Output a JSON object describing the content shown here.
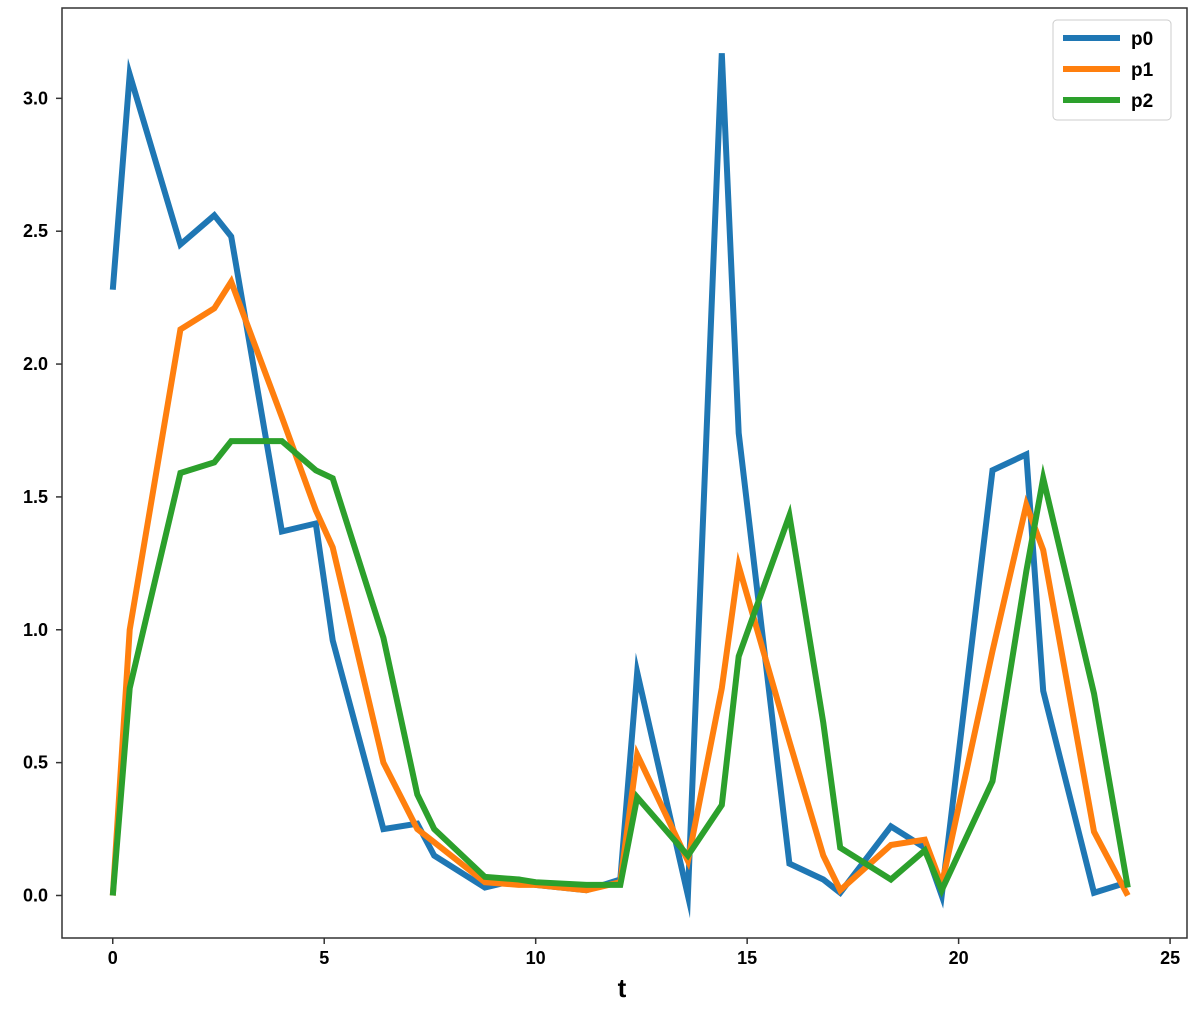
{
  "chart_data": {
    "type": "line",
    "title": "",
    "xlabel": "t",
    "ylabel": "",
    "xlim": [
      -1.2,
      25.4
    ],
    "ylim": [
      -0.16,
      3.34
    ],
    "xticks": [
      0,
      5,
      10,
      15,
      20,
      25
    ],
    "yticks": [
      0.0,
      0.5,
      1.0,
      1.5,
      2.0,
      2.5,
      3.0
    ],
    "xtick_labels": [
      "0",
      "5",
      "10",
      "15",
      "20",
      "25"
    ],
    "ytick_labels": [
      "0.0",
      "0.5",
      "1.0",
      "1.5",
      "2.0",
      "2.5",
      "3.0"
    ],
    "grid": false,
    "legend_position": "top-right",
    "series": [
      {
        "name": "p0",
        "color": "#1f77b4",
        "x": [
          0,
          0.4,
          1.6,
          2.4,
          2.8,
          4.0,
          4.8,
          5.2,
          6.4,
          7.2,
          7.6,
          8.8,
          9.6,
          10.0,
          11.2,
          12.0,
          12.4,
          13.6,
          14.4,
          14.8,
          16.0,
          16.8,
          17.2,
          18.4,
          19.2,
          19.6,
          20.8,
          21.6,
          22.0,
          23.2,
          24.0
        ],
        "y": [
          2.28,
          3.09,
          2.45,
          2.56,
          2.48,
          1.37,
          1.4,
          0.96,
          0.25,
          0.27,
          0.15,
          0.03,
          0.06,
          0.04,
          0.02,
          0.06,
          0.84,
          0.0,
          3.17,
          1.74,
          0.12,
          0.06,
          0.01,
          0.26,
          0.18,
          0.0,
          1.6,
          1.66,
          0.77,
          0.01,
          0.05
        ]
      },
      {
        "name": "p1",
        "color": "#ff7f0e",
        "x": [
          0,
          0.4,
          1.6,
          2.4,
          2.8,
          4.0,
          4.8,
          5.2,
          6.4,
          7.2,
          7.6,
          8.8,
          9.6,
          10.0,
          11.2,
          12.0,
          12.4,
          13.6,
          14.4,
          14.8,
          16.0,
          16.8,
          17.2,
          18.4,
          19.2,
          19.6,
          20.8,
          21.6,
          22.0,
          23.2,
          24.0
        ],
        "y": [
          0.0,
          1.0,
          2.13,
          2.21,
          2.31,
          1.8,
          1.45,
          1.31,
          0.5,
          0.25,
          0.2,
          0.05,
          0.04,
          0.04,
          0.02,
          0.05,
          0.53,
          0.13,
          0.78,
          1.24,
          0.58,
          0.15,
          0.02,
          0.19,
          0.21,
          0.04,
          0.92,
          1.47,
          1.3,
          0.24,
          0.0
        ]
      },
      {
        "name": "p2",
        "color": "#2ca02c",
        "x": [
          0,
          0.4,
          1.6,
          2.4,
          2.8,
          4.0,
          4.8,
          5.2,
          6.4,
          7.2,
          7.6,
          8.8,
          9.6,
          10.0,
          11.2,
          12.0,
          12.4,
          13.6,
          14.4,
          14.8,
          16.0,
          16.8,
          17.2,
          18.4,
          19.2,
          19.6,
          20.8,
          21.6,
          22.0,
          23.2,
          24.0
        ],
        "y": [
          0.0,
          0.78,
          1.59,
          1.63,
          1.71,
          1.71,
          1.6,
          1.57,
          0.97,
          0.38,
          0.25,
          0.07,
          0.06,
          0.05,
          0.04,
          0.04,
          0.37,
          0.15,
          0.34,
          0.9,
          1.43,
          0.65,
          0.18,
          0.06,
          0.17,
          0.02,
          0.43,
          1.22,
          1.57,
          0.76,
          0.03
        ]
      }
    ]
  }
}
